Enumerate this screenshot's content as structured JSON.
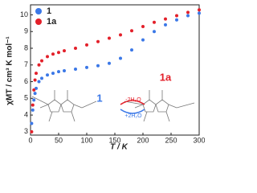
{
  "chart_data": {
    "type": "scatter",
    "x_label": "T / K",
    "y_label": "χMT / cm³ K mol⁻¹",
    "x": [
      2,
      4,
      6,
      8,
      10,
      15,
      20,
      30,
      40,
      50,
      60,
      80,
      100,
      120,
      140,
      160,
      180,
      200,
      220,
      240,
      260,
      280,
      300
    ],
    "series": [
      {
        "name": "1",
        "color": "#3b78e7",
        "values": [
          3.5,
          4.3,
          4.9,
          5.3,
          5.6,
          6.0,
          6.2,
          6.4,
          6.5,
          6.6,
          6.65,
          6.75,
          6.85,
          6.95,
          7.1,
          7.4,
          7.9,
          8.5,
          9.0,
          9.4,
          9.7,
          9.95,
          10.1
        ]
      },
      {
        "name": "1a",
        "color": "#e3202a",
        "values": [
          3.0,
          4.6,
          5.5,
          6.1,
          6.5,
          7.0,
          7.25,
          7.5,
          7.65,
          7.75,
          7.85,
          8.0,
          8.2,
          8.4,
          8.6,
          8.8,
          9.05,
          9.3,
          9.55,
          9.75,
          9.95,
          10.15,
          10.3
        ]
      }
    ],
    "xlim": [
      0,
      300
    ],
    "xticks": [
      0,
      50,
      100,
      150,
      200,
      250,
      300
    ],
    "ylim": [
      2.8,
      10.6
    ],
    "yticks": [
      3,
      4,
      5,
      6,
      7,
      8,
      9,
      10
    ],
    "legend": "upper-left",
    "annotations": {
      "label_1": "1",
      "label_1a": "1a",
      "dehydrate": "-2H₂O",
      "hydrate": "+2H₂O"
    }
  }
}
